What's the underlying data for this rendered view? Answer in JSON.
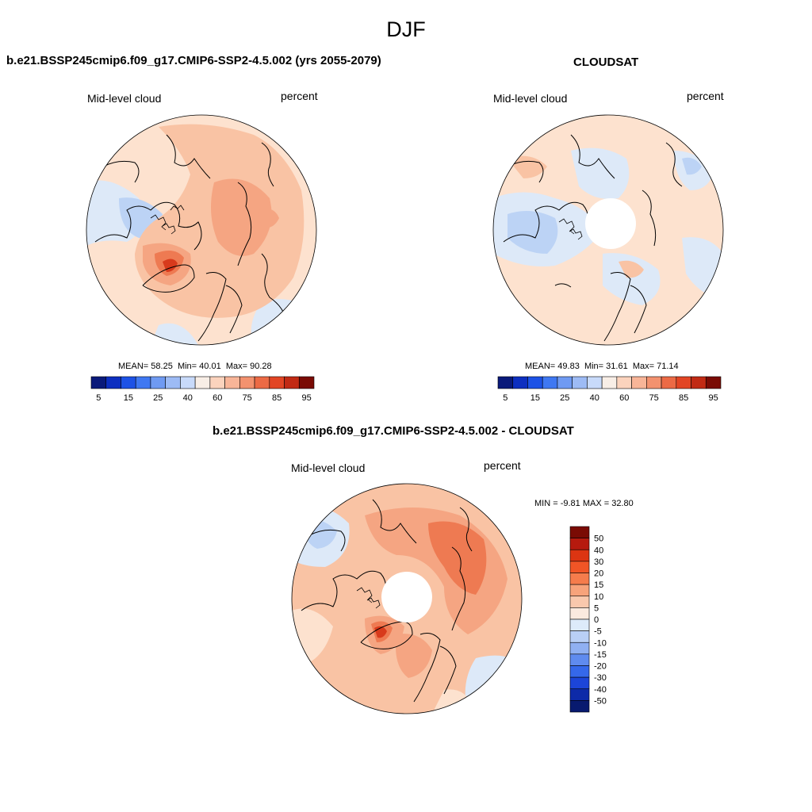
{
  "page_title": "DJF",
  "panels": [
    {
      "title": "b.e21.BSSP245cmip6.f09_g17.CMIP6-SSP2-4.5.002 (yrs 2055-2079)",
      "left_label": "Mid-level cloud",
      "right_label": "percent",
      "stats": {
        "mean_label": "MEAN=",
        "mean": "58.25",
        "min_label": "Min=",
        "min": "40.01",
        "max_label": "Max=",
        "max": "90.28"
      },
      "has_polar_hole": false
    },
    {
      "title": "CLOUDSAT",
      "left_label": "Mid-level cloud",
      "right_label": "percent",
      "stats": {
        "mean_label": "MEAN=",
        "mean": "49.83",
        "min_label": "Min=",
        "min": "31.61",
        "max_label": "Max=",
        "max": "71.14"
      },
      "has_polar_hole": true
    },
    {
      "title": "b.e21.BSSP245cmip6.f09_g17.CMIP6-SSP2-4.5.002 - CLOUDSAT",
      "left_label": "Mid-level cloud",
      "right_label": "percent",
      "stats_text": "MIN =  -9.81 MAX =  32.80",
      "has_polar_hole": true
    }
  ],
  "colorbar_abs": {
    "colors": [
      "#0a1a7a",
      "#0d2fc0",
      "#1d52e6",
      "#3f78f2",
      "#6f9af2",
      "#9dbbf5",
      "#c8dafa",
      "#f8eee6",
      "#fbd3bd",
      "#f8b598",
      "#f3926f",
      "#ec6a45",
      "#e24524",
      "#c12a14",
      "#7a0b04"
    ],
    "tick_labels": [
      "5",
      "15",
      "25",
      "40",
      "60",
      "75",
      "85",
      "95"
    ]
  },
  "colorbar_diff": {
    "colors": [
      "#7a0b04",
      "#b61a0e",
      "#dc3512",
      "#f05526",
      "#f57c4c",
      "#f7a37b",
      "#f9c8ad",
      "#fbeadf",
      "#ddebfa",
      "#b9cff6",
      "#90b0f2",
      "#5f8bef",
      "#3568ea",
      "#1c45d8",
      "#0d2aa8",
      "#081a6f"
    ],
    "tick_labels": [
      "50",
      "40",
      "30",
      "20",
      "15",
      "10",
      "5",
      "0",
      "-5",
      "-10",
      "-15",
      "-20",
      "-30",
      "-40",
      "-50"
    ]
  },
  "map_colors": {
    "ocean_outline": "#000000",
    "pale_orange": "#fde2cf",
    "light_orange": "#f9c3a4",
    "mid_orange": "#f5a582",
    "dark_orange": "#ee7a52",
    "red": "#d83a1c",
    "pale_blue": "#dde9f8",
    "light_blue": "#bcd3f5",
    "mid_blue": "#94b3ef"
  }
}
